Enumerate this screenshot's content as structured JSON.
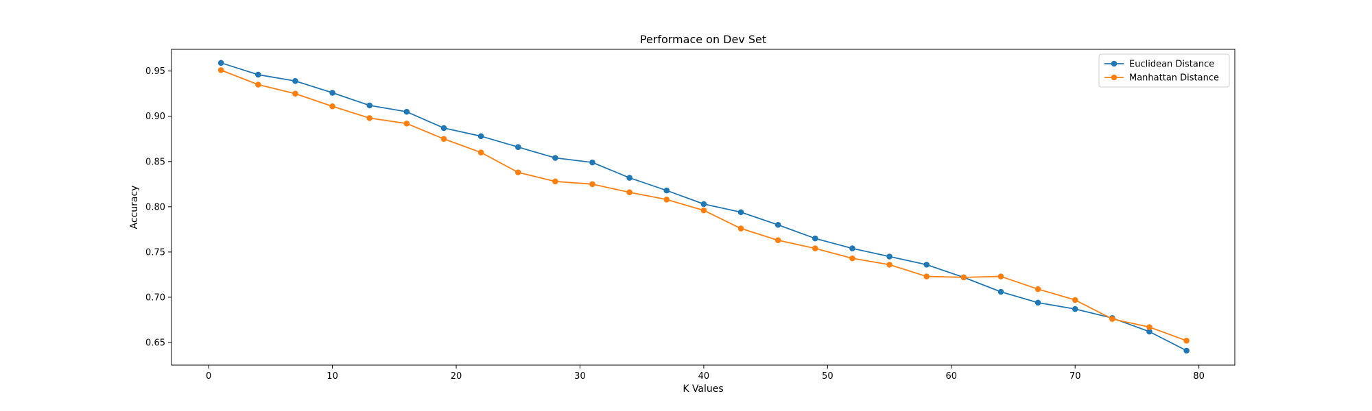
{
  "chart_data": {
    "type": "line",
    "title": "Performace on Dev Set",
    "xlabel": "K Values",
    "ylabel": "Accuracy",
    "xlim": [
      -3,
      82.9
    ],
    "ylim": [
      0.625,
      0.974
    ],
    "xticks": [
      0,
      10,
      20,
      30,
      40,
      50,
      60,
      70,
      80
    ],
    "yticks": [
      0.65,
      0.7,
      0.75,
      0.8,
      0.85,
      0.9,
      0.95
    ],
    "grid": false,
    "legend_position": "top-right",
    "x": [
      1,
      4,
      7,
      10,
      13,
      16,
      19,
      22,
      25,
      28,
      31,
      34,
      37,
      40,
      43,
      46,
      49,
      52,
      55,
      58,
      61,
      64,
      67,
      70,
      73,
      76,
      79
    ],
    "series": [
      {
        "name": "Euclidean Distance",
        "color": "#1f77b4",
        "values": [
          0.959,
          0.946,
          0.939,
          0.926,
          0.912,
          0.905,
          0.887,
          0.878,
          0.866,
          0.854,
          0.849,
          0.832,
          0.818,
          0.803,
          0.794,
          0.78,
          0.765,
          0.754,
          0.745,
          0.736,
          0.722,
          0.706,
          0.694,
          0.687,
          0.677,
          0.662,
          0.641
        ]
      },
      {
        "name": "Manhattan Distance",
        "color": "#ff7f0e",
        "values": [
          0.951,
          0.935,
          0.925,
          0.911,
          0.898,
          0.892,
          0.875,
          0.86,
          0.838,
          0.828,
          0.825,
          0.816,
          0.808,
          0.796,
          0.776,
          0.763,
          0.754,
          0.743,
          0.736,
          0.723,
          0.722,
          0.723,
          0.709,
          0.697,
          0.676,
          0.667,
          0.652
        ]
      }
    ]
  }
}
